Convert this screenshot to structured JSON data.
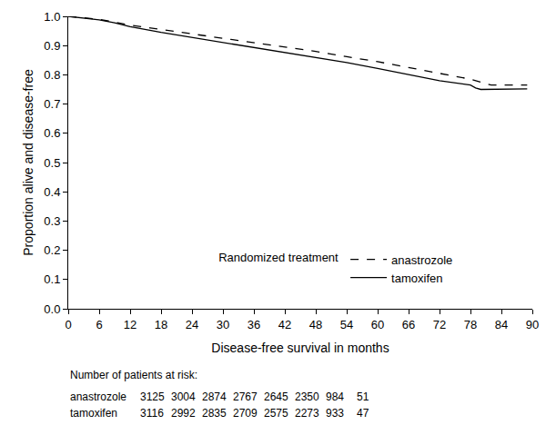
{
  "chart_data": {
    "type": "line",
    "x_label": "Disease-free survival in months",
    "y_label": "Proportion alive and disease-free",
    "xlim": [
      0,
      90
    ],
    "xticks": [
      0,
      6,
      12,
      18,
      24,
      30,
      36,
      42,
      48,
      54,
      60,
      66,
      72,
      78,
      84,
      90
    ],
    "ylim": [
      0,
      1
    ],
    "yticks": [
      {
        "value": 0,
        "label": "0.0"
      },
      {
        "value": 0.1,
        "label": "0.1"
      },
      {
        "value": 0.2,
        "label": "0.2"
      },
      {
        "value": 0.3,
        "label": "0.3"
      },
      {
        "value": 0.4,
        "label": "0.4"
      },
      {
        "value": 0.5,
        "label": "0.5"
      },
      {
        "value": 0.6,
        "label": "0.6"
      },
      {
        "value": 0.7,
        "label": "0.7"
      },
      {
        "value": 0.8,
        "label": "0.8"
      },
      {
        "value": 0.9,
        "label": "0.9"
      },
      {
        "value": 1,
        "label": "1.0"
      }
    ],
    "grid": false,
    "legend": "lower right",
    "legend_title": "Randomized treatment",
    "series": [
      {
        "name": "anastrozole",
        "color": "#000000",
        "line_style": "dash",
        "x": [
          0,
          3,
          6,
          9,
          12,
          18,
          24,
          30,
          36,
          42,
          48,
          54,
          60,
          66,
          72,
          78,
          80,
          82,
          84,
          86,
          89
        ],
        "values": [
          1.0,
          0.995,
          0.99,
          0.98,
          0.97,
          0.955,
          0.94,
          0.925,
          0.91,
          0.895,
          0.88,
          0.862,
          0.845,
          0.825,
          0.805,
          0.785,
          0.775,
          0.765,
          0.765,
          0.765,
          0.765
        ]
      },
      {
        "name": "tamoxifen",
        "color": "#000000",
        "line_style": "solid",
        "x": [
          0,
          3,
          6,
          9,
          12,
          18,
          24,
          30,
          36,
          42,
          48,
          54,
          60,
          66,
          72,
          78,
          79,
          80,
          84,
          86,
          89
        ],
        "values": [
          1.0,
          0.995,
          0.988,
          0.978,
          0.965,
          0.945,
          0.928,
          0.91,
          0.895,
          0.878,
          0.86,
          0.842,
          0.822,
          0.8,
          0.78,
          0.765,
          0.755,
          0.75,
          0.75,
          0.752,
          0.752
        ]
      }
    ],
    "at_risk": {
      "title": "Number of patients at risk:",
      "rows": [
        {
          "name": "anastrozole",
          "values": [
            3125,
            3004,
            2874,
            2767,
            2645,
            2350,
            984,
            51
          ]
        },
        {
          "name": "tamoxifen",
          "values": [
            3116,
            2992,
            2835,
            2709,
            2575,
            2273,
            933,
            47
          ]
        }
      ]
    }
  }
}
